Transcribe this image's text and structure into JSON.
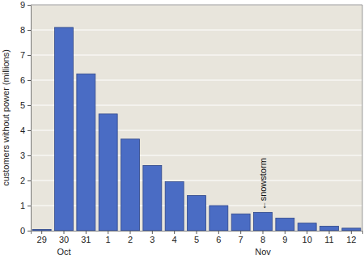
{
  "chart_data": {
    "type": "bar",
    "y_label": "customers without power (millions)",
    "categories": [
      "29",
      "30",
      "31",
      "1",
      "2",
      "3",
      "4",
      "5",
      "6",
      "7",
      "8",
      "9",
      "10",
      "11",
      "12"
    ],
    "values": [
      0.05,
      8.1,
      6.25,
      4.65,
      3.65,
      2.6,
      1.95,
      1.4,
      1.0,
      0.67,
      0.73,
      0.5,
      0.3,
      0.18,
      0.1
    ],
    "color": "#4a6cc4",
    "ylim": [
      0,
      9
    ],
    "yticks": [
      0,
      1,
      2,
      3,
      4,
      5,
      6,
      7,
      8,
      9
    ],
    "grid": true,
    "month_labels": [
      {
        "label": "Oct",
        "category": "30"
      },
      {
        "label": "Nov",
        "category": "8"
      }
    ],
    "annotations": [
      {
        "text": "←snowstorm",
        "category": "8"
      }
    ]
  }
}
